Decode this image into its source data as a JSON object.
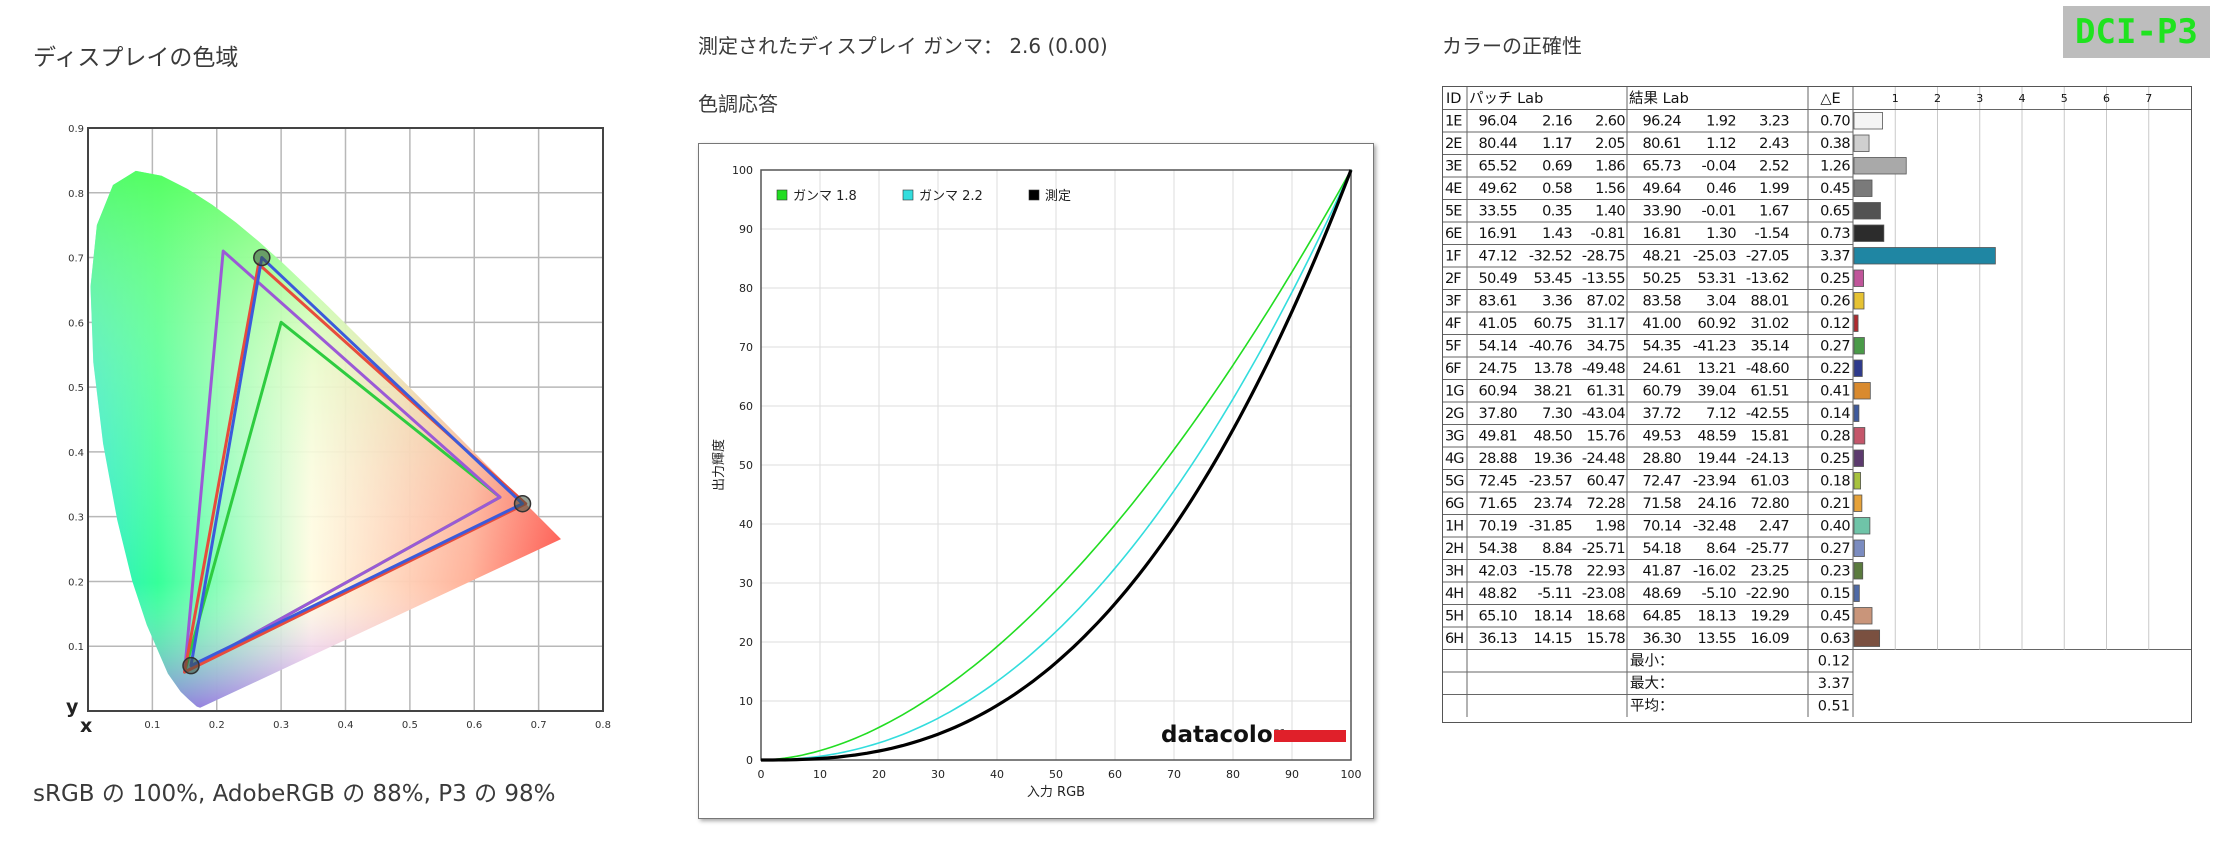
{
  "gamut": {
    "title": "ディスプレイの色域",
    "summary": "sRGB の 100%, AdobeRGB の 88%, P3 の 98%"
  },
  "gamma": {
    "measured_label": "測定されたディスプレイ ガンマ： 2.6 (0.00)",
    "section_title": "色調応答"
  },
  "accuracy": {
    "title": "カラーの正確性",
    "badge": "DCI-P3",
    "headers": {
      "id": "ID",
      "patch": "パッチ Lab",
      "result": "結果 Lab",
      "de": "△E"
    },
    "summary": [
      {
        "label": "最小：",
        "value": "0.12"
      },
      {
        "label": "最大：",
        "value": "3.37"
      },
      {
        "label": "平均：",
        "value": "0.51"
      }
    ]
  },
  "chart_data": [
    {
      "type": "scatter",
      "name": "cie-1931-gamut",
      "xlabel": "x",
      "ylabel": "y",
      "xlim": [
        0,
        0.8
      ],
      "ylim": [
        0,
        0.9
      ],
      "x_ticks": [
        "0.1",
        "0.2",
        "0.3",
        "0.4",
        "0.5",
        "0.6",
        "0.7",
        "0.8"
      ],
      "y_ticks": [
        "0.1",
        "0.2",
        "0.3",
        "0.4",
        "0.5",
        "0.6",
        "0.7",
        "0.8",
        "0.9"
      ],
      "grid": true,
      "triangles": [
        {
          "color": "#2ecc40",
          "points": [
            [
              0.64,
              0.33
            ],
            [
              0.3,
              0.6
            ],
            [
              0.15,
              0.06
            ]
          ]
        },
        {
          "color": "#9b59d6",
          "points": [
            [
              0.64,
              0.33
            ],
            [
              0.21,
              0.71
            ],
            [
              0.15,
              0.06
            ]
          ]
        },
        {
          "color": "#e74c3c",
          "points": [
            [
              0.68,
              0.32
            ],
            [
              0.265,
              0.69
            ],
            [
              0.15,
              0.06
            ]
          ]
        },
        {
          "color": "#3b5bdb",
          "points": [
            [
              0.675,
              0.32
            ],
            [
              0.27,
              0.7
            ],
            [
              0.16,
              0.07
            ]
          ]
        }
      ],
      "markers": [
        [
          0.675,
          0.32
        ],
        [
          0.27,
          0.7
        ],
        [
          0.16,
          0.07
        ]
      ]
    },
    {
      "type": "line",
      "name": "tone-response",
      "xlabel": "入力 RGB",
      "ylabel": "出力輝度",
      "xlim": [
        0,
        100
      ],
      "ylim": [
        0,
        100
      ],
      "x_ticks": [
        "0",
        "10",
        "20",
        "30",
        "40",
        "50",
        "60",
        "70",
        "80",
        "90",
        "100"
      ],
      "y_ticks": [
        "0",
        "10",
        "20",
        "30",
        "40",
        "50",
        "60",
        "70",
        "80",
        "90",
        "100"
      ],
      "grid": true,
      "legend_position": "top-left",
      "series": [
        {
          "name": "ガンマ 1.8",
          "color": "#22dd22",
          "gamma": 1.8
        },
        {
          "name": "ガンマ 2.2",
          "color": "#33dddd",
          "gamma": 2.2
        },
        {
          "name": "測定",
          "color": "#000000",
          "gamma": 2.6
        }
      ],
      "watermark": "datacolor",
      "watermark_color": "#e0202a"
    },
    {
      "type": "table",
      "name": "color-accuracy",
      "de_axis": {
        "min": 0,
        "max": 8,
        "ticks": [
          "1",
          "2",
          "3",
          "4",
          "5",
          "6",
          "7"
        ]
      },
      "rows": [
        {
          "id": "1E",
          "patch": [
            "96.04",
            "2.16",
            "2.60"
          ],
          "result": [
            "96.24",
            "1.92",
            "3.23"
          ],
          "de": 0.7,
          "color": "#f5f5f5"
        },
        {
          "id": "2E",
          "patch": [
            "80.44",
            "1.17",
            "2.05"
          ],
          "result": [
            "80.61",
            "1.12",
            "2.43"
          ],
          "de": 0.38,
          "color": "#cfcfcf"
        },
        {
          "id": "3E",
          "patch": [
            "65.52",
            "0.69",
            "1.86"
          ],
          "result": [
            "65.73",
            "-0.04",
            "2.52"
          ],
          "de": 1.26,
          "color": "#a9a9a9"
        },
        {
          "id": "4E",
          "patch": [
            "49.62",
            "0.58",
            "1.56"
          ],
          "result": [
            "49.64",
            "0.46",
            "1.99"
          ],
          "de": 0.45,
          "color": "#7a7a7a"
        },
        {
          "id": "5E",
          "patch": [
            "33.55",
            "0.35",
            "1.40"
          ],
          "result": [
            "33.90",
            "-0.01",
            "1.67"
          ],
          "de": 0.65,
          "color": "#525252"
        },
        {
          "id": "6E",
          "patch": [
            "16.91",
            "1.43",
            "-0.81"
          ],
          "result": [
            "16.81",
            "1.30",
            "-1.54"
          ],
          "de": 0.73,
          "color": "#2c2c2c"
        },
        {
          "id": "1F",
          "patch": [
            "47.12",
            "-32.52",
            "-28.75"
          ],
          "result": [
            "48.21",
            "-25.03",
            "-27.05"
          ],
          "de": 3.37,
          "color": "#1f86a3"
        },
        {
          "id": "2F",
          "patch": [
            "50.49",
            "53.45",
            "-13.55"
          ],
          "result": [
            "50.25",
            "53.31",
            "-13.62"
          ],
          "de": 0.25,
          "color": "#c0559a"
        },
        {
          "id": "3F",
          "patch": [
            "83.61",
            "3.36",
            "87.02"
          ],
          "result": [
            "83.58",
            "3.04",
            "88.01"
          ],
          "de": 0.26,
          "color": "#e6c233"
        },
        {
          "id": "4F",
          "patch": [
            "41.05",
            "60.75",
            "31.17"
          ],
          "result": [
            "41.00",
            "60.92",
            "31.02"
          ],
          "de": 0.12,
          "color": "#b02a2e"
        },
        {
          "id": "5F",
          "patch": [
            "54.14",
            "-40.76",
            "34.75"
          ],
          "result": [
            "54.35",
            "-41.23",
            "35.14"
          ],
          "de": 0.27,
          "color": "#4a9a48"
        },
        {
          "id": "6F",
          "patch": [
            "24.75",
            "13.78",
            "-49.48"
          ],
          "result": [
            "24.61",
            "13.21",
            "-48.60"
          ],
          "de": 0.22,
          "color": "#2e3a8c"
        },
        {
          "id": "1G",
          "patch": [
            "60.94",
            "38.21",
            "61.31"
          ],
          "result": [
            "60.79",
            "39.04",
            "61.51"
          ],
          "de": 0.41,
          "color": "#d98a2e"
        },
        {
          "id": "2G",
          "patch": [
            "37.80",
            "7.30",
            "-43.04"
          ],
          "result": [
            "37.72",
            "7.12",
            "-42.55"
          ],
          "de": 0.14,
          "color": "#3f5a9e"
        },
        {
          "id": "3G",
          "patch": [
            "49.81",
            "48.50",
            "15.76"
          ],
          "result": [
            "49.53",
            "48.59",
            "15.81"
          ],
          "de": 0.28,
          "color": "#c4566a"
        },
        {
          "id": "4G",
          "patch": [
            "28.88",
            "19.36",
            "-24.48"
          ],
          "result": [
            "28.80",
            "19.44",
            "-24.13"
          ],
          "de": 0.25,
          "color": "#5c3a6e"
        },
        {
          "id": "5G",
          "patch": [
            "72.45",
            "-23.57",
            "60.47"
          ],
          "result": [
            "72.47",
            "-23.94",
            "61.03"
          ],
          "de": 0.18,
          "color": "#a7c23e"
        },
        {
          "id": "6G",
          "patch": [
            "71.65",
            "23.74",
            "72.28"
          ],
          "result": [
            "71.58",
            "24.16",
            "72.80"
          ],
          "de": 0.21,
          "color": "#e6a23a"
        },
        {
          "id": "1H",
          "patch": [
            "70.19",
            "-31.85",
            "1.98"
          ],
          "result": [
            "70.14",
            "-32.48",
            "2.47"
          ],
          "de": 0.4,
          "color": "#6fc4a8"
        },
        {
          "id": "2H",
          "patch": [
            "54.38",
            "8.84",
            "-25.71"
          ],
          "result": [
            "54.18",
            "8.64",
            "-25.77"
          ],
          "de": 0.27,
          "color": "#7b8cc0"
        },
        {
          "id": "3H",
          "patch": [
            "42.03",
            "-15.78",
            "22.93"
          ],
          "result": [
            "41.87",
            "-16.02",
            "23.25"
          ],
          "de": 0.23,
          "color": "#5a7a3e"
        },
        {
          "id": "4H",
          "patch": [
            "48.82",
            "-5.11",
            "-23.08"
          ],
          "result": [
            "48.69",
            "-5.10",
            "-22.90"
          ],
          "de": 0.15,
          "color": "#4f6aa6"
        },
        {
          "id": "5H",
          "patch": [
            "65.10",
            "18.14",
            "18.68"
          ],
          "result": [
            "64.85",
            "18.13",
            "19.29"
          ],
          "de": 0.45,
          "color": "#c9957a"
        },
        {
          "id": "6H",
          "patch": [
            "36.13",
            "14.15",
            "15.78"
          ],
          "result": [
            "36.30",
            "13.55",
            "16.09"
          ],
          "de": 0.63,
          "color": "#7a5040"
        }
      ]
    }
  ]
}
